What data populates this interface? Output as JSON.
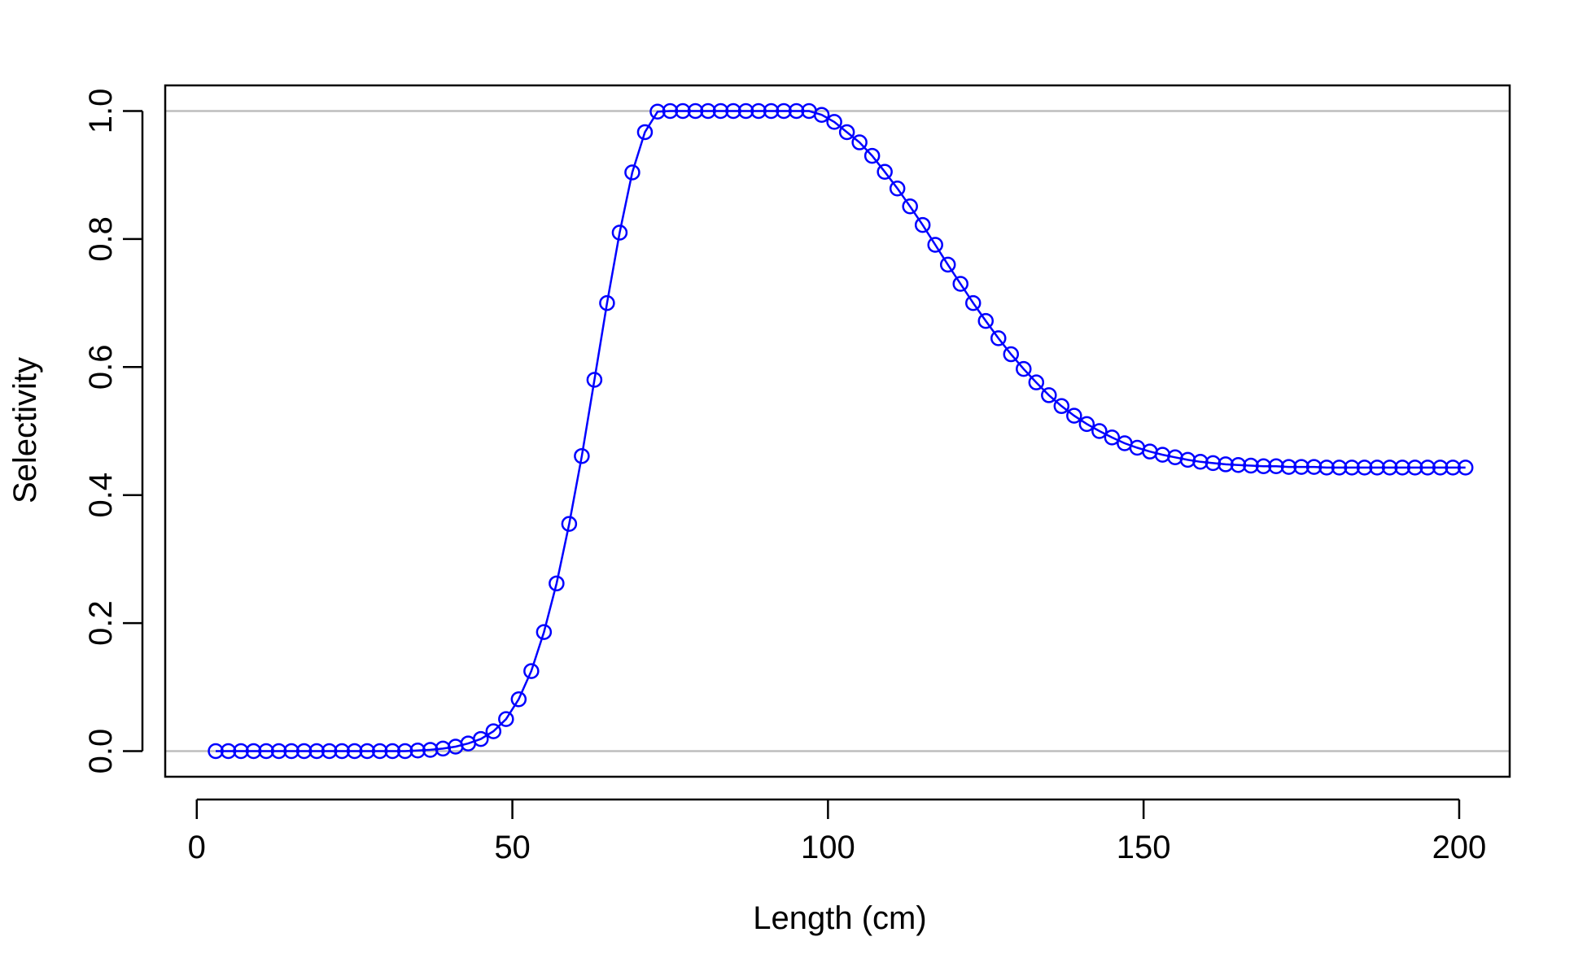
{
  "chart_data": {
    "type": "line",
    "xlabel": "Length (cm)",
    "ylabel": "Selectivity",
    "xlim": [
      -5,
      208
    ],
    "ylim": [
      -0.04,
      1.04
    ],
    "x_ticks": [
      0,
      50,
      100,
      150,
      200
    ],
    "x_tick_labels": [
      "0",
      "50",
      "100",
      "150",
      "200"
    ],
    "y_ticks": [
      0.0,
      0.2,
      0.4,
      0.6,
      0.8,
      1.0
    ],
    "y_tick_labels": [
      "0.0",
      "0.2",
      "0.4",
      "0.6",
      "0.8",
      "1.0"
    ],
    "reference_lines": [
      0,
      1
    ],
    "grid": false,
    "legend": "none",
    "colors": {
      "series": "#0000ff",
      "reference_line": "#bebebe",
      "axes": "#000000"
    },
    "series": [
      {
        "x": [
          3,
          5,
          7,
          9,
          11,
          13,
          15,
          17,
          19,
          21,
          23,
          25,
          27,
          29,
          31,
          33,
          35,
          37,
          39,
          41,
          43,
          45,
          47,
          49,
          51,
          53,
          55,
          57,
          59,
          61,
          63,
          65,
          67,
          69,
          71,
          73,
          75,
          77,
          79,
          81,
          83,
          85,
          87,
          89,
          91,
          93,
          95,
          97,
          99,
          101,
          103,
          105,
          107,
          109,
          111,
          113,
          115,
          117,
          119,
          121,
          123,
          125,
          127,
          129,
          131,
          133,
          135,
          137,
          139,
          141,
          143,
          145,
          147,
          149,
          151,
          153,
          155,
          157,
          159,
          161,
          163,
          165,
          167,
          169,
          171,
          173,
          175,
          177,
          179,
          181,
          183,
          185,
          187,
          189,
          191,
          193,
          195,
          197,
          199,
          201
        ],
        "values": [
          0.0,
          0.0,
          0.0,
          0.0,
          0.0,
          0.0,
          0.0,
          0.0,
          0.0,
          0.0,
          0.0,
          0.0,
          0.0,
          0.0,
          0.0,
          0.0,
          0.001,
          0.002,
          0.004,
          0.007,
          0.012,
          0.019,
          0.031,
          0.05,
          0.081,
          0.125,
          0.186,
          0.262,
          0.355,
          0.461,
          0.58,
          0.7,
          0.81,
          0.904,
          0.967,
          0.999,
          1.0,
          1.0,
          1.0,
          1.0,
          1.0,
          1.0,
          1.0,
          1.0,
          1.0,
          1.0,
          1.0,
          1.0,
          0.994,
          0.983,
          0.967,
          0.951,
          0.93,
          0.905,
          0.879,
          0.851,
          0.822,
          0.791,
          0.76,
          0.73,
          0.7,
          0.672,
          0.645,
          0.62,
          0.597,
          0.576,
          0.556,
          0.539,
          0.524,
          0.511,
          0.5,
          0.49,
          0.481,
          0.474,
          0.468,
          0.463,
          0.459,
          0.455,
          0.452,
          0.45,
          0.448,
          0.447,
          0.446,
          0.445,
          0.445,
          0.444,
          0.444,
          0.444,
          0.443,
          0.443,
          0.443,
          0.443,
          0.443,
          0.443,
          0.443,
          0.443,
          0.443,
          0.443,
          0.443,
          0.443
        ]
      }
    ]
  }
}
